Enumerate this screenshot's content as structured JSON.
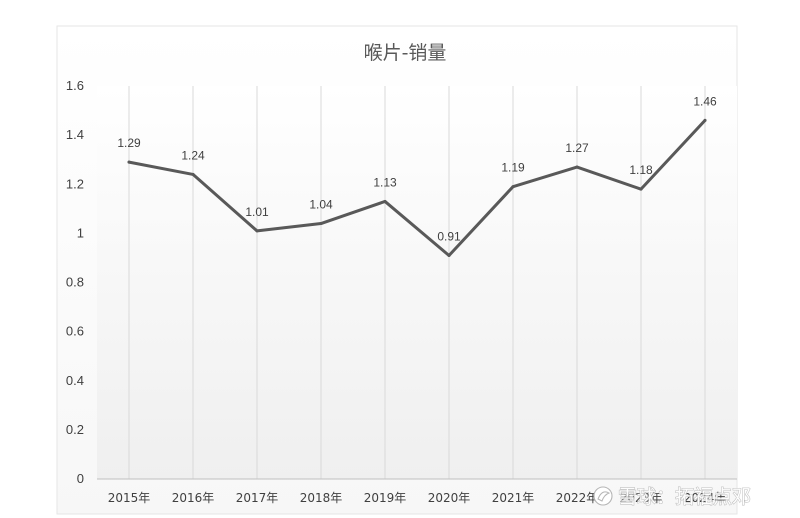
{
  "chart_data": {
    "type": "line",
    "title": "喉片-销量",
    "xlabel": "",
    "ylabel": "",
    "categories": [
      "2015年",
      "2016年",
      "2017年",
      "2018年",
      "2019年",
      "2020年",
      "2021年",
      "2022年",
      "2023年",
      "2024年"
    ],
    "series": [
      {
        "values": [
          1.29,
          1.24,
          1.01,
          1.04,
          1.13,
          0.91,
          1.19,
          1.27,
          1.18,
          1.46
        ],
        "labels": [
          "1.29",
          "1.24",
          "1.01",
          "1.04",
          "1.13",
          "0.91",
          "1.19",
          "1.27",
          "1.18",
          "1.46"
        ],
        "color": "#595959"
      }
    ],
    "ylim": [
      0,
      1.6
    ],
    "yticks": [
      "0",
      "0.2",
      "0.4",
      "0.6",
      "0.8",
      "1",
      "1.2",
      "1.4",
      "1.6"
    ],
    "grid": "vertical",
    "legend": "none"
  },
  "watermark": {
    "text": "雪球：拓福点邓"
  },
  "colors": {
    "line": "#595959",
    "grid": "#d9d9d9",
    "axis": "#bfbfbf",
    "text": "#404040",
    "title": "#595959"
  }
}
